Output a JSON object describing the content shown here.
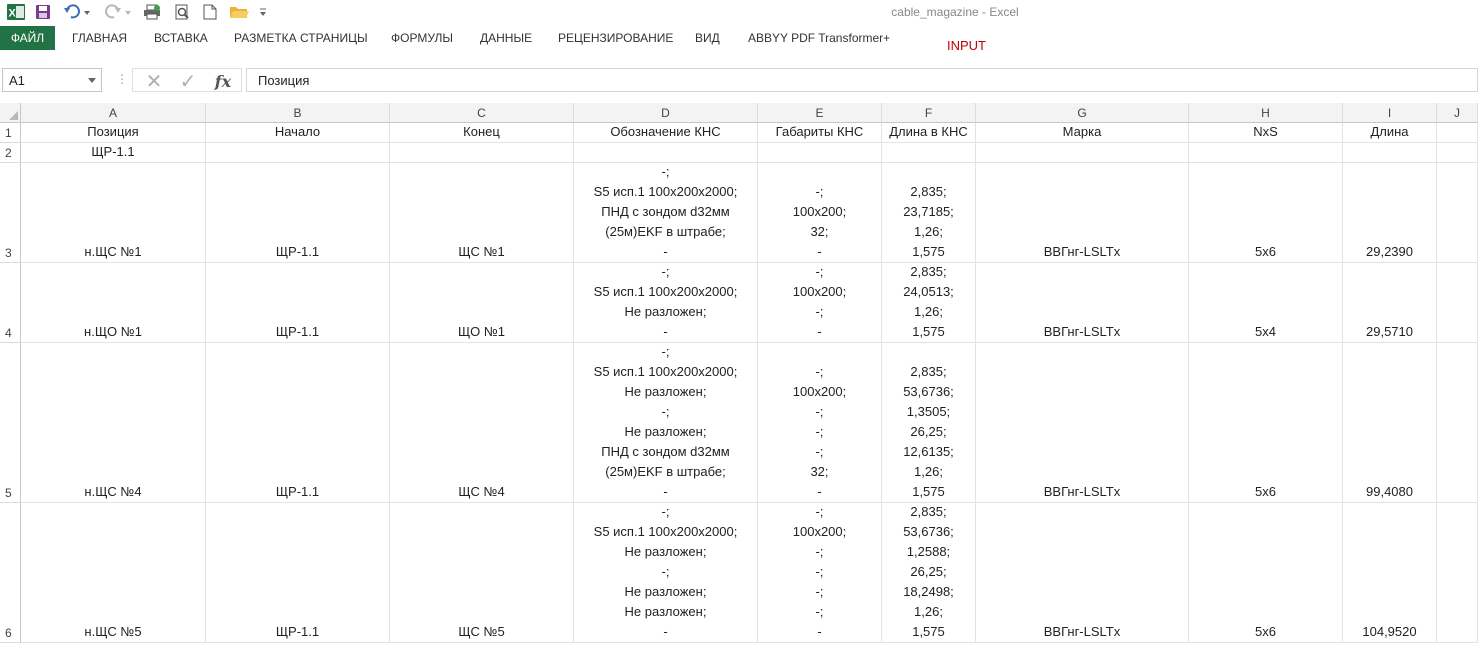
{
  "window": {
    "title": "cable_magazine - Excel"
  },
  "icons": {
    "app": "excel-logo-icon",
    "save": "save-icon",
    "undo": "undo-icon",
    "redo": "redo-icon",
    "print_preview": "print-preview-icon",
    "quick_print": "quick-print-icon",
    "new": "new-document-icon",
    "open": "open-folder-icon",
    "customize": "customize-qat-icon"
  },
  "colors": {
    "brand": "#217346",
    "input_tab": "#c00000"
  },
  "ribbon": {
    "tabs": [
      {
        "label": "ФАЙЛ"
      },
      {
        "label": "ГЛАВНАЯ"
      },
      {
        "label": "ВСТАВКА"
      },
      {
        "label": "РАЗМЕТКА СТРАНИЦЫ"
      },
      {
        "label": "ФОРМУЛЫ"
      },
      {
        "label": "ДАННЫЕ"
      },
      {
        "label": "РЕЦЕНЗИРОВАНИЕ"
      },
      {
        "label": "ВИД"
      },
      {
        "label": "ABBYY PDF Transformer+"
      },
      {
        "label": "INPUT"
      }
    ]
  },
  "formula_bar": {
    "name_box": "A1",
    "separator": "⋮",
    "cancel": "✕",
    "enter": "✓",
    "fx": "fx",
    "content": "Позиция"
  },
  "sheet": {
    "columns": [
      "A",
      "B",
      "C",
      "D",
      "E",
      "F",
      "G",
      "H",
      "I",
      "J"
    ],
    "rows": [
      {
        "num": "1",
        "cells": [
          "Позиция",
          "Начало",
          "Конец",
          "Обозначение КНС",
          "Габариты КНС",
          "Длина в КНС",
          "Марка",
          "NxS",
          "Длина",
          ""
        ]
      },
      {
        "num": "2",
        "cells": [
          "ЩР-1.1",
          "",
          "",
          "",
          "",
          "",
          "",
          "",
          "",
          ""
        ]
      },
      {
        "num": "3",
        "cells": [
          "н.ЩС №1",
          "ЩР-1.1",
          "ЩС №1",
          "-;\nS5 исп.1 100x200x2000;\nПНД с зондом d32мм\n(25м)EKF в штрабе;\n-",
          "-;\n100x200;\n32;\n-",
          "2,835;\n23,7185;\n1,26;\n1,575",
          "ВВГнг-LSLTx",
          "5x6",
          "29,2390",
          ""
        ]
      },
      {
        "num": "4",
        "cells": [
          "н.ЩО №1",
          "ЩР-1.1",
          "ЩО №1",
          "-;\nS5 исп.1 100x200x2000;\nНе разложен;\n-",
          "-;\n100x200;\n-;\n-",
          "2,835;\n24,0513;\n1,26;\n1,575",
          "ВВГнг-LSLTx",
          "5x4",
          "29,5710",
          ""
        ]
      },
      {
        "num": "5",
        "cells": [
          "н.ЩС №4",
          "ЩР-1.1",
          "ЩС №4",
          "-;\nS5 исп.1 100x200x2000;\nНе разложен;\n-;\nНе разложен;\nПНД с зондом d32мм\n(25м)EKF в штрабе;\n-",
          "-;\n100x200;\n-;\n-;\n-;\n32;\n-",
          "2,835;\n53,6736;\n1,3505;\n26,25;\n12,6135;\n1,26;\n1,575",
          "ВВГнг-LSLTx",
          "5x6",
          "99,4080",
          ""
        ]
      },
      {
        "num": "6",
        "cells": [
          "н.ЩС №5",
          "ЩР-1.1",
          "ЩС №5",
          "-;\nS5 исп.1 100x200x2000;\nНе разложен;\n-;\nНе разложен;\nНе разложен;\n-",
          "-;\n100x200;\n-;\n-;\n-;\n-;\n-",
          "2,835;\n53,6736;\n1,2588;\n26,25;\n18,2498;\n1,26;\n1,575",
          "ВВГнг-LSLTx",
          "5x6",
          "104,9520",
          ""
        ]
      }
    ]
  }
}
